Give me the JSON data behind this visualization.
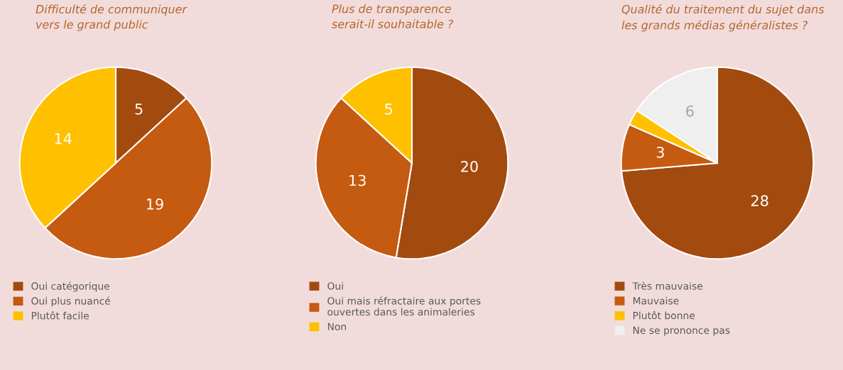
{
  "chart_data": [
    {
      "type": "pie",
      "title": "Difficulté de communiquer\nvers le grand public",
      "categories": [
        "Oui catégorique",
        "Oui plus nuancé",
        "Plutôt facile"
      ],
      "values": [
        5,
        19,
        14
      ],
      "colors": [
        "#a34a0f",
        "#c55a11",
        "#ffc000"
      ],
      "value_labels": [
        "5",
        "19",
        "14"
      ],
      "legend": "bottom"
    },
    {
      "type": "pie",
      "title": "Plus de transparence\nserait-il souhaitable ?",
      "categories": [
        "Oui",
        "Oui mais réfractaire aux portes\nouvertes dans les animaleries",
        "Non"
      ],
      "values": [
        20,
        13,
        5
      ],
      "colors": [
        "#a34a0f",
        "#c55a11",
        "#ffc000"
      ],
      "value_labels": [
        "20",
        "13",
        "5"
      ],
      "legend": "bottom"
    },
    {
      "type": "pie",
      "title": "Qualité du traitement du sujet dans\nles grands médias généralistes ?",
      "categories": [
        "Très mauvaise",
        "Mauvaise",
        "Plutôt bonne",
        "Ne se prononce pas"
      ],
      "values": [
        28,
        3,
        1,
        6
      ],
      "colors": [
        "#a34a0f",
        "#c55a11",
        "#ffc000",
        "#efefef"
      ],
      "value_labels": [
        "28",
        "3",
        null,
        "6"
      ],
      "legend": "bottom"
    }
  ]
}
